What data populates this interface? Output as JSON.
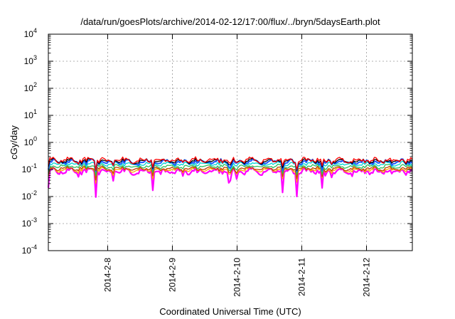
{
  "chart_data": {
    "type": "line",
    "title": "/data/run/goesPlots/archive/2014-02-12/17:00/flux/../bryn/5daysEarth.plot",
    "xlabel": "Coordinated Universal Time (UTC)",
    "ylabel": "cGy/day",
    "yscale": "log",
    "ylim": [
      0.0001,
      10000
    ],
    "y_ticks": [
      {
        "value": 0.0001,
        "base": "10",
        "exp": "-4"
      },
      {
        "value": 0.001,
        "base": "10",
        "exp": "-3"
      },
      {
        "value": 0.01,
        "base": "10",
        "exp": "-2"
      },
      {
        "value": 0.1,
        "base": "10",
        "exp": "-1"
      },
      {
        "value": 1,
        "base": "10",
        "exp": "0"
      },
      {
        "value": 10,
        "base": "10",
        "exp": "1"
      },
      {
        "value": 100,
        "base": "10",
        "exp": "2"
      },
      {
        "value": 1000,
        "base": "10",
        "exp": "3"
      },
      {
        "value": 10000,
        "base": "10",
        "exp": "4"
      }
    ],
    "xlim": [
      "2014-02-07 02:00",
      "2014-02-12 17:00"
    ],
    "x_ticks": [
      "2014-2-8",
      "2014-2-9",
      "2014-2-10",
      "2014-2-11",
      "2014-2-12"
    ],
    "grid": true,
    "legend": "none",
    "series": [
      {
        "color": "#ff0000",
        "level": 0.22,
        "spread": 0.25,
        "dip_depth": 0.3
      },
      {
        "color": "#000000",
        "level": 0.205,
        "spread": 0.22,
        "dip_depth": 0.3
      },
      {
        "color": "#1e5aff",
        "level": 0.19,
        "spread": 0.25,
        "dip_depth": 0.35
      },
      {
        "color": "#00d4d4",
        "level": 0.16,
        "spread": 0.2,
        "dip_depth": 0.3
      },
      {
        "color": "#2fbf5a",
        "level": 0.13,
        "spread": 0.18,
        "dip_depth": 0.35
      },
      {
        "color": "#c04000",
        "level": 0.108,
        "spread": 0.18,
        "dip_depth": 0.4
      },
      {
        "color": "#ffaa00",
        "level": 0.098,
        "spread": 0.2,
        "dip_depth": 0.45
      },
      {
        "color": "#ff00ff",
        "level": 0.085,
        "spread": 0.28,
        "dip_depth": 0.9
      }
    ]
  }
}
